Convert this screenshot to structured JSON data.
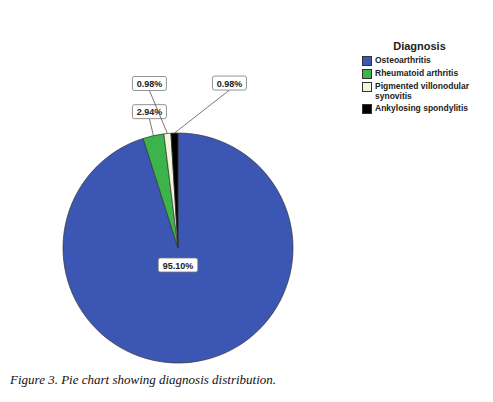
{
  "chart_data": {
    "type": "pie",
    "title": "Figure 3. Pie chart showing diagnosis distribution.",
    "legend_title": "Diagnosis",
    "categories": [
      "Osteoarthritis",
      "Rheumatoid arthritis",
      "Pigmented villonodular synovitis",
      "Ankylosing spondylitis"
    ],
    "values": [
      95.1,
      2.94,
      0.98,
      0.98
    ],
    "value_labels": [
      "95.10%",
      "2.94%",
      "0.98%",
      "0.98%"
    ],
    "colors": [
      "#3c56b4",
      "#3cb44b",
      "#f2f6dc",
      "#000000"
    ],
    "data_labels": true,
    "legend": "right"
  }
}
